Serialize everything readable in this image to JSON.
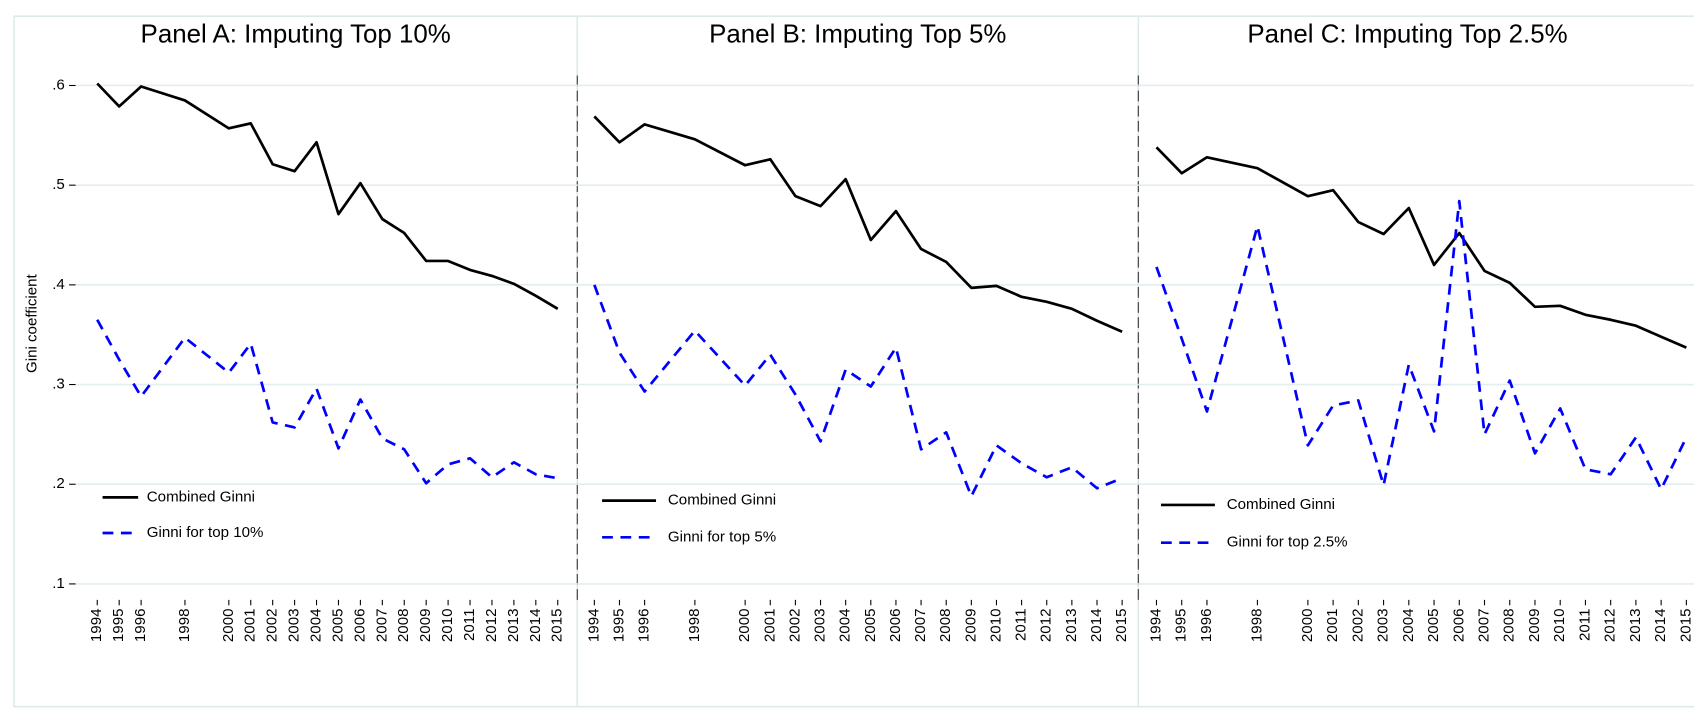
{
  "chart_data": [
    {
      "type": "line",
      "title": "Panel A: Imputing Top 10%",
      "ylabel": "Gini coefficient",
      "x": [
        1994,
        1995,
        1996,
        1998,
        2000,
        2001,
        2002,
        2003,
        2004,
        2005,
        2006,
        2007,
        2008,
        2009,
        2010,
        2011,
        2012,
        2013,
        2014,
        2015
      ],
      "series": [
        {
          "name": "Combined Ginni",
          "color": "#000000",
          "style": "solid",
          "values": [
            0.602,
            0.579,
            0.599,
            0.585,
            0.557,
            0.562,
            0.521,
            0.514,
            0.543,
            0.471,
            0.502,
            0.466,
            0.452,
            0.424,
            0.424,
            0.415,
            0.409,
            0.401,
            0.389,
            0.376
          ]
        },
        {
          "name": "Ginni for top 10%",
          "color": "#0000ff",
          "style": "dashed",
          "values": [
            0.365,
            0.325,
            0.288,
            0.347,
            0.312,
            0.341,
            0.262,
            0.257,
            0.296,
            0.236,
            0.285,
            0.246,
            0.235,
            0.201,
            0.22,
            0.226,
            0.207,
            0.222,
            0.21,
            0.206
          ]
        }
      ],
      "xlim": [
        1993.75,
        2015.3
      ],
      "ylim": [
        0.084,
        0.61
      ],
      "yticks": [
        {
          "value": 0.1,
          "label": ".1"
        },
        {
          "value": 0.2,
          "label": ".2"
        },
        {
          "value": 0.3,
          "label": ".3"
        },
        {
          "value": 0.4,
          "label": ".4"
        },
        {
          "value": 0.5,
          "label": ".5"
        },
        {
          "value": 0.6,
          "label": ".6"
        }
      ],
      "show_yaxis": true,
      "grid": true,
      "legend": "lower left"
    },
    {
      "type": "line",
      "title": "Panel B: Imputing Top 5%",
      "x": [
        1994,
        1995,
        1996,
        1998,
        2000,
        2001,
        2002,
        2003,
        2004,
        2005,
        2006,
        2007,
        2008,
        2009,
        2010,
        2011,
        2012,
        2013,
        2014,
        2015
      ],
      "series": [
        {
          "name": "Combined Ginni",
          "color": "#000000",
          "style": "solid",
          "values": [
            0.569,
            0.543,
            0.561,
            0.546,
            0.52,
            0.526,
            0.489,
            0.479,
            0.506,
            0.445,
            0.474,
            0.436,
            0.423,
            0.397,
            0.399,
            0.388,
            0.383,
            0.376,
            0.364,
            0.353
          ]
        },
        {
          "name": "Ginni for top 5%",
          "color": "#0000ff",
          "style": "dashed",
          "values": [
            0.4,
            0.332,
            0.293,
            0.354,
            0.299,
            0.33,
            0.29,
            0.243,
            0.315,
            0.298,
            0.337,
            0.235,
            0.252,
            0.188,
            0.239,
            0.221,
            0.207,
            0.217,
            0.196,
            0.206
          ]
        }
      ],
      "xlim": [
        1993.75,
        2015.3
      ],
      "ylim": [
        0.084,
        0.61
      ],
      "yticks": [
        0.1,
        0.2,
        0.3,
        0.4,
        0.5,
        0.6
      ],
      "show_yaxis": false,
      "grid": true,
      "legend": "lower left"
    },
    {
      "type": "line",
      "title": "Panel C: Imputing Top 2.5%",
      "x": [
        1994,
        1995,
        1996,
        1998,
        2000,
        2001,
        2002,
        2003,
        2004,
        2005,
        2006,
        2007,
        2008,
        2009,
        2010,
        2011,
        2012,
        2013,
        2014,
        2015
      ],
      "series": [
        {
          "name": "Combined Ginni",
          "color": "#000000",
          "style": "solid",
          "values": [
            0.538,
            0.512,
            0.528,
            0.517,
            0.489,
            0.495,
            0.463,
            0.451,
            0.477,
            0.42,
            0.452,
            0.414,
            0.402,
            0.378,
            0.379,
            0.37,
            0.365,
            0.359,
            0.348,
            0.337
          ]
        },
        {
          "name": "Ginni for top 2.5%",
          "color": "#0000ff",
          "style": "dashed",
          "values": [
            0.418,
            0.346,
            0.273,
            0.459,
            0.239,
            0.279,
            0.284,
            0.199,
            0.32,
            0.253,
            0.484,
            0.25,
            0.304,
            0.231,
            0.276,
            0.215,
            0.21,
            0.247,
            0.195,
            0.247
          ]
        }
      ],
      "xlim": [
        1993.75,
        2015.3
      ],
      "ylim": [
        0.084,
        0.61
      ],
      "yticks": [
        0.1,
        0.2,
        0.3,
        0.4,
        0.5,
        0.6
      ],
      "show_yaxis": false,
      "grid": true,
      "legend": "lower left"
    }
  ]
}
